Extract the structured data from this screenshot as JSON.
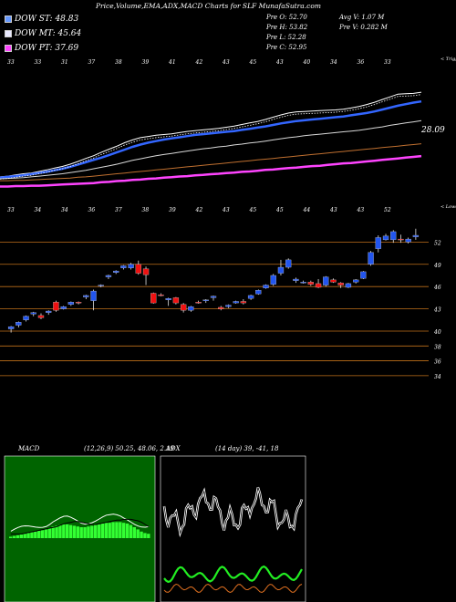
{
  "header": {
    "title": "Price,Volume,EMA,ADX,MACD Charts for SLF MunafaSutra.com"
  },
  "legend": [
    {
      "label": "DOW ST: 48.83",
      "color": "#6699ff"
    },
    {
      "label": "DOW MT: 45.64",
      "color": "#e8e8ff"
    },
    {
      "label": "DOW PT: 37.69",
      "color": "#ff44ff"
    }
  ],
  "stats": {
    "open": "Pre  O: 52.70",
    "high": "Pre  H: 53.82",
    "low": "Pre  L: 52.28",
    "close": "Pre  C: 52.95",
    "avg_vol": "Avg V: 1.07  M",
    "vol": "Pre  V: 0.282  M"
  },
  "colors": {
    "up": "#2255ee",
    "down": "#ee1111",
    "grid": "#c0701a",
    "macd_bg": "#006400",
    "hist": "#33ff33"
  },
  "ema_panel": {
    "top_labels": [
      "33",
      "33",
      "31",
      "37",
      "38",
      "39",
      "41",
      "42",
      "43",
      "45",
      "43",
      "40",
      "34",
      "36",
      "33"
    ],
    "axis_note": "< Trigger",
    "last_value": "28.09"
  },
  "price_panel": {
    "top_labels": [
      "33",
      "34",
      "34",
      "36",
      "37",
      "38",
      "39",
      "42",
      "43",
      "45",
      "45",
      "44",
      "43",
      "43",
      "52"
    ],
    "axis_note": "< Lower",
    "right_labels": [
      "52",
      "49",
      "46",
      "43",
      "40",
      "38",
      "36",
      "34"
    ]
  },
  "chart_data": [
    {
      "type": "candlestick",
      "title": "SLF",
      "y_ticks": [
        52,
        49,
        46,
        43,
        40,
        38,
        36,
        34
      ],
      "ylim": [
        33,
        54.5
      ],
      "candles": [
        {
          "o": 40.3,
          "h": 40.7,
          "l": 39.8,
          "c": 40.6
        },
        {
          "o": 40.8,
          "h": 41.3,
          "l": 40.5,
          "c": 41.2
        },
        {
          "o": 41.5,
          "h": 42.1,
          "l": 41.3,
          "c": 42.0
        },
        {
          "o": 42.3,
          "h": 42.6,
          "l": 42.0,
          "c": 42.5
        },
        {
          "o": 42.1,
          "h": 42.4,
          "l": 41.6,
          "c": 41.8
        },
        {
          "o": 42.5,
          "h": 42.8,
          "l": 42.2,
          "c": 42.7
        },
        {
          "o": 43.9,
          "h": 44.1,
          "l": 42.6,
          "c": 42.8
        },
        {
          "o": 43.0,
          "h": 43.4,
          "l": 42.9,
          "c": 43.3
        },
        {
          "o": 43.6,
          "h": 44.0,
          "l": 43.4,
          "c": 43.9
        },
        {
          "o": 43.9,
          "h": 44.0,
          "l": 43.6,
          "c": 43.8
        },
        {
          "o": 44.6,
          "h": 44.9,
          "l": 44.3,
          "c": 44.8
        },
        {
          "o": 44.1,
          "h": 45.6,
          "l": 42.8,
          "c": 45.4
        },
        {
          "o": 46.1,
          "h": 46.3,
          "l": 45.9,
          "c": 46.2
        },
        {
          "o": 47.3,
          "h": 47.6,
          "l": 47.0,
          "c": 47.5
        },
        {
          "o": 47.9,
          "h": 48.2,
          "l": 47.7,
          "c": 48.1
        },
        {
          "o": 48.5,
          "h": 48.9,
          "l": 48.3,
          "c": 48.8
        },
        {
          "o": 48.5,
          "h": 49.2,
          "l": 48.3,
          "c": 49.0
        },
        {
          "o": 49.0,
          "h": 49.5,
          "l": 47.6,
          "c": 47.8
        },
        {
          "o": 48.4,
          "h": 48.7,
          "l": 46.2,
          "c": 47.6
        },
        {
          "o": 45.1,
          "h": 45.2,
          "l": 43.7,
          "c": 43.8
        },
        {
          "o": 44.9,
          "h": 45.1,
          "l": 44.7,
          "c": 44.8
        },
        {
          "o": 44.2,
          "h": 44.5,
          "l": 43.4,
          "c": 44.4
        },
        {
          "o": 44.5,
          "h": 44.6,
          "l": 43.6,
          "c": 43.8
        },
        {
          "o": 43.6,
          "h": 43.8,
          "l": 42.5,
          "c": 42.8
        },
        {
          "o": 42.8,
          "h": 43.4,
          "l": 42.6,
          "c": 43.3
        },
        {
          "o": 43.9,
          "h": 44.1,
          "l": 43.7,
          "c": 43.8
        },
        {
          "o": 44.1,
          "h": 44.3,
          "l": 43.8,
          "c": 44.2
        },
        {
          "o": 44.5,
          "h": 44.8,
          "l": 44.1,
          "c": 44.7
        },
        {
          "o": 43.2,
          "h": 43.4,
          "l": 42.8,
          "c": 43.0
        },
        {
          "o": 43.3,
          "h": 43.6,
          "l": 43.1,
          "c": 43.5
        },
        {
          "o": 43.8,
          "h": 44.1,
          "l": 43.7,
          "c": 44.0
        },
        {
          "o": 44.0,
          "h": 44.3,
          "l": 43.6,
          "c": 43.8
        },
        {
          "o": 44.4,
          "h": 44.9,
          "l": 44.2,
          "c": 44.8
        },
        {
          "o": 45.0,
          "h": 45.6,
          "l": 44.9,
          "c": 45.5
        },
        {
          "o": 45.8,
          "h": 46.3,
          "l": 45.7,
          "c": 46.2
        },
        {
          "o": 46.3,
          "h": 47.7,
          "l": 46.1,
          "c": 47.5
        },
        {
          "o": 47.8,
          "h": 49.6,
          "l": 47.5,
          "c": 48.6
        },
        {
          "o": 48.6,
          "h": 49.8,
          "l": 48.4,
          "c": 49.6
        },
        {
          "o": 46.8,
          "h": 47.2,
          "l": 46.5,
          "c": 47.0
        },
        {
          "o": 46.6,
          "h": 46.8,
          "l": 46.4,
          "c": 46.6
        },
        {
          "o": 46.6,
          "h": 46.8,
          "l": 46.1,
          "c": 46.3
        },
        {
          "o": 46.4,
          "h": 47.0,
          "l": 45.8,
          "c": 45.9
        },
        {
          "o": 46.2,
          "h": 47.4,
          "l": 46.0,
          "c": 47.3
        },
        {
          "o": 46.9,
          "h": 47.1,
          "l": 46.5,
          "c": 46.6
        },
        {
          "o": 46.5,
          "h": 46.6,
          "l": 45.8,
          "c": 46.2
        },
        {
          "o": 45.9,
          "h": 46.5,
          "l": 45.8,
          "c": 46.4
        },
        {
          "o": 46.6,
          "h": 47.0,
          "l": 46.4,
          "c": 46.9
        },
        {
          "o": 47.1,
          "h": 48.1,
          "l": 47.0,
          "c": 48.0
        },
        {
          "o": 49.0,
          "h": 50.8,
          "l": 48.8,
          "c": 50.6
        },
        {
          "o": 51.1,
          "h": 52.9,
          "l": 50.6,
          "c": 52.6
        },
        {
          "o": 52.3,
          "h": 53.1,
          "l": 52.2,
          "c": 52.8
        },
        {
          "o": 52.3,
          "h": 53.6,
          "l": 51.9,
          "c": 53.4
        },
        {
          "o": 52.4,
          "h": 53.0,
          "l": 51.9,
          "c": 52.3
        },
        {
          "o": 52.0,
          "h": 52.6,
          "l": 51.8,
          "c": 52.4
        },
        {
          "o": 52.7,
          "h": 53.8,
          "l": 52.3,
          "c": 52.9
        }
      ]
    },
    {
      "type": "line",
      "title": "EMA",
      "series": [
        {
          "values": [
            33,
            33.2,
            33.5,
            33.8,
            34.0,
            34.4,
            34.8,
            35.3,
            35.7,
            36.3,
            37.0,
            37.8,
            38.5,
            39.4,
            40.2,
            41.0,
            41.9,
            42.6,
            43.2,
            43.5,
            43.8,
            44.0,
            44.2,
            44.5,
            44.8,
            45.0,
            45.2,
            45.4,
            45.6,
            45.9,
            46.2,
            46.6,
            47.0,
            47.4,
            47.9,
            48.5,
            49.1,
            49.6,
            49.9,
            50.0,
            50.1,
            50.2,
            50.3,
            50.4,
            50.6,
            50.9,
            51.3,
            51.8,
            52.4,
            53.1,
            53.8,
            54.5,
            54.6,
            54.7,
            55.0
          ]
        },
        {
          "values": [
            32.8,
            33.0,
            33.2,
            33.4,
            33.7,
            34.0,
            34.3,
            34.7,
            35.1,
            35.6,
            36.2,
            36.8,
            37.4,
            38.0,
            38.7,
            39.4,
            40.1,
            40.8,
            41.4,
            41.9,
            42.3,
            42.7,
            43.0,
            43.3,
            43.6,
            43.9,
            44.1,
            44.3,
            44.5,
            44.7,
            44.9,
            45.2,
            45.5,
            45.8,
            46.1,
            46.5,
            46.9,
            47.2,
            47.5,
            47.7,
            47.9,
            48.1,
            48.3,
            48.5,
            48.7,
            49.0,
            49.3,
            49.6,
            50.0,
            50.5,
            51.0,
            51.5,
            51.9,
            52.3,
            52.6
          ]
        },
        {
          "values": [
            32.5,
            32.6,
            32.7,
            32.8,
            33.0,
            33.2,
            33.4,
            33.6,
            33.8,
            34.1,
            34.4,
            34.7,
            35.1,
            35.5,
            35.9,
            36.3,
            36.8,
            37.3,
            37.7,
            38.1,
            38.5,
            38.8,
            39.1,
            39.4,
            39.7,
            40.0,
            40.3,
            40.5,
            40.8,
            41.0,
            41.3,
            41.5,
            41.8,
            42.0,
            42.3,
            42.6,
            42.9,
            43.2,
            43.4,
            43.7,
            43.9,
            44.1,
            44.3,
            44.5,
            44.7,
            44.9,
            45.1,
            45.4,
            45.7,
            46.0,
            46.4,
            46.7,
            47.0,
            47.3,
            47.6
          ]
        },
        {
          "values": [
            32.0,
            32.0,
            32.1,
            32.1,
            32.2,
            32.3,
            32.4,
            32.5,
            32.6,
            32.7,
            32.9,
            33.0,
            33.2,
            33.4,
            33.6,
            33.8,
            34.0,
            34.2,
            34.4,
            34.6,
            34.8,
            35.0,
            35.2,
            35.4,
            35.6,
            35.8,
            36.0,
            36.2,
            36.4,
            36.6,
            36.8,
            37.0,
            37.2,
            37.4,
            37.6,
            37.8,
            38.0,
            38.2,
            38.4,
            38.6,
            38.8,
            39.0,
            39.2,
            39.4,
            39.6,
            39.8,
            40.0,
            40.2,
            40.4,
            40.6,
            40.8,
            41.0,
            41.2,
            41.4,
            41.6
          ]
        },
        {
          "values": [
            30.5,
            30.5,
            30.6,
            30.6,
            30.7,
            30.7,
            30.8,
            30.9,
            31.0,
            31.1,
            31.2,
            31.3,
            31.4,
            31.6,
            31.7,
            31.9,
            32.0,
            32.2,
            32.3,
            32.5,
            32.6,
            32.8,
            32.9,
            33.1,
            33.2,
            33.4,
            33.5,
            33.7,
            33.8,
            34.0,
            34.1,
            34.3,
            34.4,
            34.6,
            34.8,
            34.9,
            35.1,
            35.3,
            35.4,
            35.6,
            35.8,
            35.9,
            36.1,
            36.3,
            36.5,
            36.6,
            36.8,
            37.0,
            37.2,
            37.4,
            37.6,
            37.8,
            38.0,
            38.2,
            38.4
          ]
        }
      ]
    },
    {
      "type": "bar",
      "title": "MACD",
      "header": "MACD",
      "params": "(12,26,9) 50.25, 48.06, 2.19",
      "values": [
        0.2,
        0.3,
        0.4,
        0.5,
        0.6,
        0.7,
        0.8,
        0.9,
        1.0,
        1.1,
        1.2,
        1.4,
        1.6,
        1.7,
        1.8,
        1.9,
        1.9,
        1.8,
        1.7,
        1.6,
        1.5,
        1.5,
        1.6,
        1.7,
        1.8,
        1.9,
        2.0,
        2.1,
        2.1,
        2.2,
        2.2,
        2.2,
        2.1,
        2.0,
        1.8,
        1.5,
        1.2,
        0.9,
        0.7,
        0.6
      ]
    },
    {
      "type": "line",
      "title": "ADX",
      "header": "ADX",
      "params": "(14 day) 39, -41, 18"
    }
  ]
}
